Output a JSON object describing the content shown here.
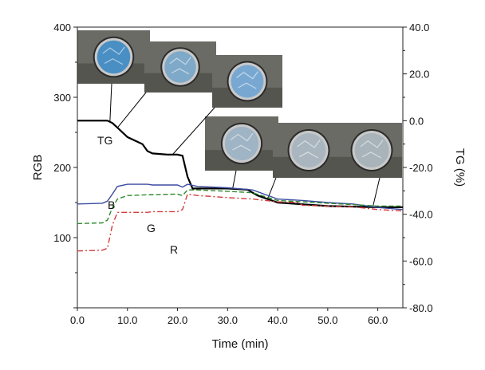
{
  "chart_data": {
    "type": "line",
    "title": "",
    "xlabel": "Time (min)",
    "ylabel_left": "RGB",
    "ylabel_right": "TG (%)",
    "xlim": [
      0,
      65
    ],
    "ylim_left": [
      0,
      400
    ],
    "ylim_right": [
      -80,
      40
    ],
    "xticks": [
      "0.0",
      "10.0",
      "20.0",
      "30.0",
      "40.0",
      "50.0",
      "60.0"
    ],
    "yticks_left": [
      "100",
      "200",
      "300",
      "400"
    ],
    "yticks_right": [
      "-80.0",
      "-60.0",
      "-40.0",
      "-20.0",
      "0.0",
      "20.0",
      "40.0"
    ],
    "grid": false,
    "series": [
      {
        "name": "TG",
        "axis": "right",
        "color": "#000000",
        "style": "solid",
        "x": [
          0,
          6,
          7,
          8,
          10,
          13,
          14,
          15,
          18,
          20,
          21,
          22,
          23,
          24,
          30,
          34,
          36,
          40,
          50,
          60,
          65
        ],
        "y": [
          0.0,
          0.0,
          -1.0,
          -3.0,
          -7.0,
          -10.0,
          -13.0,
          -14.0,
          -14.5,
          -14.5,
          -15.0,
          -24.0,
          -29.0,
          -29.0,
          -29.0,
          -29.5,
          -32.0,
          -35.0,
          -36.5,
          -37.0,
          -37.0
        ]
      },
      {
        "name": "B",
        "axis": "left",
        "color": "#3b4ba0",
        "style": "solid",
        "x": [
          0,
          5,
          6,
          7,
          8,
          10,
          14,
          15,
          20,
          21,
          22,
          24,
          30,
          35,
          40,
          45,
          50,
          55,
          60,
          65
        ],
        "y": [
          148,
          149,
          152,
          162,
          173,
          176,
          176,
          175,
          175,
          172,
          176,
          173,
          171,
          168,
          155,
          153,
          150,
          148,
          143,
          140
        ]
      },
      {
        "name": "G",
        "axis": "left",
        "color": "#2e8b2e",
        "style": "dashed",
        "x": [
          0,
          5,
          6,
          7,
          8,
          10,
          14,
          20,
          21,
          22,
          24,
          30,
          35,
          40,
          45,
          50,
          55,
          60,
          65
        ],
        "y": [
          120,
          121,
          125,
          143,
          155,
          160,
          161,
          162,
          160,
          168,
          168,
          166,
          164,
          153,
          151,
          149,
          147,
          145,
          145
        ]
      },
      {
        "name": "R",
        "axis": "left",
        "color": "#d63b3b",
        "style": "dashdot",
        "x": [
          0,
          5,
          6,
          7,
          8,
          14,
          15,
          20,
          21,
          22,
          24,
          30,
          35,
          40,
          44,
          45,
          50,
          55,
          60,
          65
        ],
        "y": [
          81,
          82,
          85,
          118,
          136,
          136,
          137,
          137,
          140,
          162,
          160,
          157,
          155,
          151,
          150,
          146,
          145,
          144,
          140,
          138
        ]
      }
    ],
    "photos": [
      {
        "name": "photo-1",
        "tint": "#4a8fc4"
      },
      {
        "name": "photo-2",
        "tint": "#7fa9c8"
      },
      {
        "name": "photo-3",
        "tint": "#78a8d2"
      },
      {
        "name": "photo-4",
        "tint": "#9fb4c4"
      },
      {
        "name": "photo-5",
        "tint": "#aab6bf"
      },
      {
        "name": "photo-6",
        "tint": "#a8b3ba"
      }
    ]
  }
}
